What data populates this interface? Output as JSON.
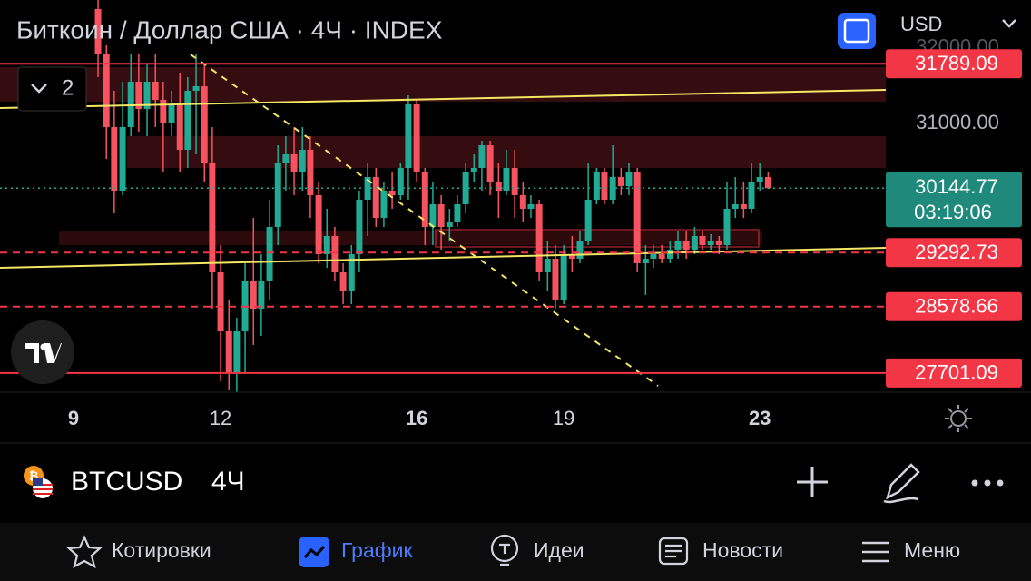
{
  "header": {
    "title": "Биткоин / Доллар США · 4Ч · INDEX",
    "currency": "USD",
    "layers_count": 2
  },
  "chart_data": {
    "type": "candlestick",
    "x": [
      9.5,
      9.67,
      9.83,
      10,
      10.17,
      10.33,
      10.5,
      10.67,
      10.83,
      11,
      11.17,
      11.33,
      11.5,
      11.67,
      11.83,
      12,
      12.17,
      12.33,
      12.5,
      12.67,
      12.83,
      13,
      13.17,
      13.33,
      13.5,
      13.67,
      13.83,
      14,
      14.17,
      14.33,
      14.5,
      14.67,
      14.83,
      15,
      15.17,
      15.33,
      15.5,
      15.67,
      15.83,
      16,
      16.17,
      16.33,
      16.5,
      16.67,
      16.83,
      17,
      17.17,
      17.33,
      17.5,
      17.67,
      17.83,
      18,
      18.17,
      18.33,
      18.5,
      18.67,
      18.83,
      19,
      19.17,
      19.33,
      19.5,
      19.67,
      19.83,
      20,
      20.17,
      20.33,
      20.5,
      20.67,
      20.83,
      21,
      21.17,
      21.33,
      21.5,
      21.67,
      21.83,
      22,
      22.17,
      22.33,
      22.5,
      22.67,
      22.83,
      23,
      23.17
    ],
    "open": [
      32512,
      31912,
      30952,
      30112,
      30952,
      31552,
      31192,
      31552,
      31312,
      31012,
      31252,
      30652,
      31432,
      31492,
      30472,
      29032,
      28252,
      27712,
      28252,
      28912,
      28552,
      28912,
      29632,
      30472,
      30592,
      30352,
      30652,
      30052,
      29272,
      29512,
      29032,
      28792,
      29272,
      29992,
      30292,
      29752,
      30112,
      30052,
      30412,
      31252,
      30352,
      29632,
      29932,
      29632,
      29692,
      29932,
      30352,
      30412,
      30712,
      30232,
      30112,
      30412,
      30052,
      29872,
      29932,
      29032,
      29212,
      28672,
      29272,
      29212,
      29452,
      29992,
      30352,
      29992,
      30292,
      30172,
      30352,
      29152,
      29212,
      29272,
      29212,
      29332,
      29452,
      29332,
      29512,
      29392,
      29452,
      29392,
      29872,
      29932,
      29872,
      30232,
      30292
    ],
    "high": [
      32632,
      32032,
      31432,
      31552,
      31912,
      31912,
      31792,
      31912,
      31552,
      31432,
      31672,
      31612,
      31912,
      31792,
      30952,
      29392,
      28672,
      28432,
      29152,
      29752,
      29272,
      29992,
      30712,
      30832,
      30952,
      30952,
      30832,
      30232,
      29872,
      29632,
      29152,
      29392,
      30112,
      30472,
      30412,
      30232,
      30352,
      30472,
      31372,
      31312,
      30412,
      30232,
      30052,
      29872,
      30052,
      30472,
      30592,
      30772,
      30772,
      30472,
      30652,
      30652,
      30232,
      30052,
      29992,
      29452,
      29392,
      29392,
      29512,
      29572,
      30472,
      30412,
      30412,
      30712,
      30412,
      30472,
      30412,
      29392,
      29392,
      29392,
      29452,
      29572,
      29572,
      29632,
      29572,
      29536,
      29512,
      30232,
      30292,
      30232,
      30472,
      30472,
      30352
    ],
    "low": [
      31612,
      30532,
      29812,
      30052,
      30832,
      30892,
      30832,
      30952,
      30352,
      30832,
      30352,
      30412,
      30592,
      30232,
      28552,
      27592,
      27472,
      27448,
      27712,
      28072,
      28192,
      28672,
      29392,
      30112,
      30052,
      30112,
      29752,
      29152,
      29092,
      28912,
      28612,
      28612,
      29032,
      29512,
      29632,
      29632,
      29872,
      29992,
      29992,
      30232,
      29392,
      29392,
      29332,
      29452,
      29632,
      29812,
      30232,
      30112,
      30052,
      29752,
      30052,
      29752,
      29692,
      29752,
      28912,
      28792,
      28552,
      28612,
      29032,
      29152,
      29392,
      29932,
      29932,
      29932,
      30052,
      30052,
      29032,
      28732,
      29092,
      29152,
      29152,
      29212,
      29212,
      29272,
      29332,
      29332,
      29272,
      29332,
      29752,
      29752,
      29812,
      30112,
      30136
    ],
    "close": [
      31912,
      30952,
      30112,
      30952,
      31552,
      31192,
      31552,
      31312,
      31012,
      31252,
      30652,
      31432,
      31492,
      30472,
      29032,
      28252,
      27712,
      28252,
      28912,
      28552,
      28912,
      29632,
      30472,
      30592,
      30352,
      30652,
      30052,
      29272,
      29512,
      29032,
      28792,
      29272,
      29992,
      30292,
      29752,
      30112,
      30052,
      30412,
      31252,
      30352,
      29632,
      29932,
      29632,
      29692,
      29932,
      30352,
      30412,
      30712,
      30232,
      30112,
      30412,
      30052,
      29872,
      29932,
      29032,
      29212,
      28672,
      29272,
      29212,
      29452,
      29992,
      30352,
      29992,
      30292,
      30172,
      30352,
      29152,
      29212,
      29272,
      29212,
      29332,
      29452,
      29332,
      29512,
      29392,
      29452,
      29392,
      29872,
      29932,
      29872,
      30232,
      30292,
      30145
    ],
    "xlim": [
      7.5,
      25.57
    ],
    "xticks": [
      9,
      12,
      16,
      19,
      23
    ],
    "ylim": [
      27448,
      32632
    ],
    "yticks": [
      {
        "value": 32000,
        "label": "32000.00"
      },
      {
        "value": 31000,
        "label": "31000.00"
      }
    ],
    "levels": [
      31789.09,
      29292.73,
      28578.66,
      27701.09
    ],
    "level_styles": [
      "solid",
      "dashed",
      "dashed",
      "solid"
    ],
    "last_price": 30144.77,
    "countdown": "03:19:06",
    "up_color": "#22ab94",
    "down_color": "#f7525f",
    "level_color": "#f23645"
  },
  "toolbar": {
    "symbol": "BTCUSD",
    "interval": "4Ч"
  },
  "nav": [
    "Котировки",
    "График",
    "Идеи",
    "Новости",
    "Меню"
  ],
  "nav_active": 1
}
